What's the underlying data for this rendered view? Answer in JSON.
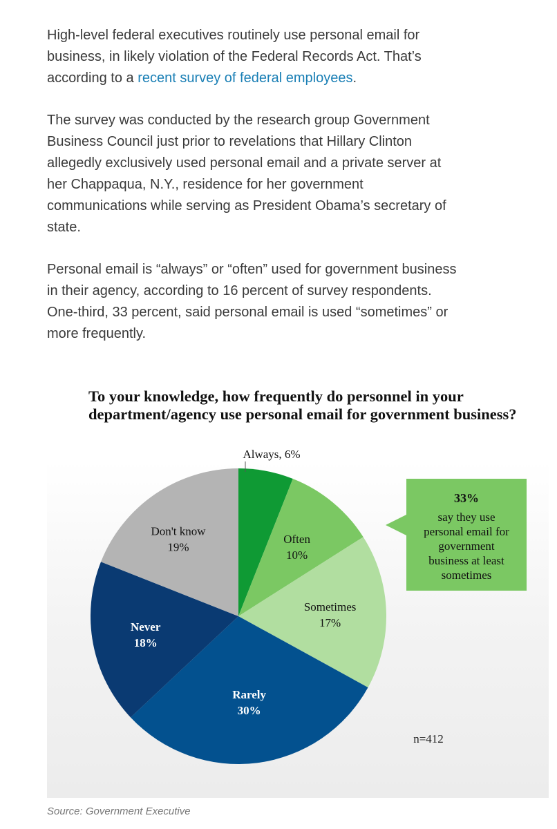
{
  "article": {
    "p1_before": "High-level federal executives routinely use personal email for business, in likely violation of the Federal Records Act. That’s according to a ",
    "p1_link": "recent survey of federal employees",
    "p1_after": ".",
    "p2": "The survey was conducted by the research group Government Business Council just prior to revelations that Hillary Clinton allegedly exclusively used personal email and a private server at her Chappaqua, N.Y., residence for her government communications while serving as President Obama’s secretary of state.",
    "p3": "Personal email is “always” or “often” used for government business in their agency, according to 16 percent of survey respondents. One-third, 33 percent, said personal email is used “sometimes” or more frequently."
  },
  "chart_data": {
    "type": "pie",
    "title": "To your knowledge, how frequently do personnel in your department/agency use personal email for government business?",
    "slices": [
      {
        "label": "Always",
        "value": 6,
        "text": "Always, 6%",
        "color": "#0f9a34"
      },
      {
        "label": "Often",
        "value": 10,
        "text": "10%",
        "color": "#7bc863"
      },
      {
        "label": "Sometimes",
        "value": 17,
        "text": "17%",
        "color": "#b1dea0"
      },
      {
        "label": "Rarely",
        "value": 30,
        "text": "30%",
        "color": "#03518f"
      },
      {
        "label": "Never",
        "value": 18,
        "text": "18%",
        "color": "#0a3a72"
      },
      {
        "label": "Don't know",
        "value": 19,
        "text": "19%",
        "color": "#b4b4b4"
      }
    ],
    "callout": {
      "value": "33%",
      "lines": [
        "say they use",
        "personal email for",
        "government",
        "business at least",
        "sometimes"
      ],
      "color": "#7bc863"
    },
    "note": "n=412"
  },
  "source": "Source: Government Executive"
}
